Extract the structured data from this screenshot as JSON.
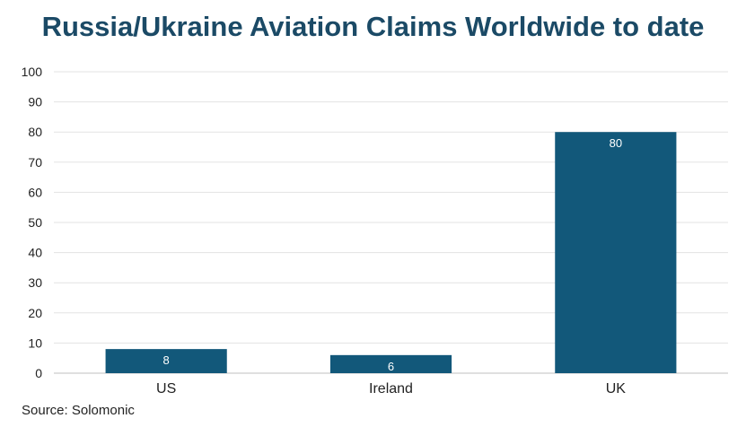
{
  "chart_data": {
    "type": "bar",
    "title": "Russia/Ukraine Aviation Claims Worldwide to date",
    "categories": [
      "US",
      "Ireland",
      "UK"
    ],
    "values": [
      8,
      6,
      80
    ],
    "data_labels": [
      "8",
      "6",
      "80"
    ],
    "yticks": [
      "0",
      "10",
      "20",
      "30",
      "40",
      "50",
      "60",
      "70",
      "80",
      "90",
      "100"
    ],
    "ylim": [
      0,
      100
    ],
    "xlabel": "",
    "ylabel": "",
    "grid": true,
    "bar_color": "#12587a",
    "source": "Source: Solomonic"
  }
}
